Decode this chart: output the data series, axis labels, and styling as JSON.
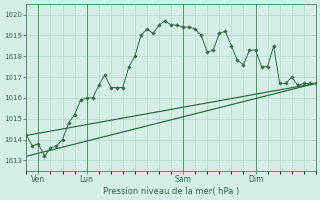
{
  "title": "Pression niveau de la mer( hPa )",
  "ylim": [
    1012.5,
    1020.5
  ],
  "xlim": [
    0,
    96
  ],
  "bg_color": "#d6eee8",
  "line_color": "#2d6e3e",
  "grid_color": "#b0d4c8",
  "tick_color": "#2d6e3e",
  "day_labels": [
    "Ven",
    "Lun",
    "Sam",
    "Dim"
  ],
  "day_positions": [
    4,
    20,
    52,
    76
  ],
  "yticks": [
    1013,
    1014,
    1015,
    1016,
    1017,
    1018,
    1019,
    1020
  ],
  "series1_x": [
    0,
    2,
    4,
    6,
    8,
    10,
    12,
    14,
    16,
    18,
    20,
    22,
    24,
    26,
    28,
    30,
    32,
    34,
    36,
    38,
    40,
    42,
    44,
    46,
    48,
    50,
    52,
    54,
    56,
    58,
    60,
    62,
    64,
    66,
    68,
    70,
    72,
    74,
    76,
    78,
    80,
    82,
    84,
    86,
    88,
    90,
    92,
    94,
    96
  ],
  "series1_y": [
    1014.2,
    1013.7,
    1013.8,
    1013.2,
    1013.6,
    1013.7,
    1014.0,
    1014.8,
    1015.2,
    1015.9,
    1016.0,
    1016.0,
    1016.6,
    1017.1,
    1016.5,
    1016.5,
    1016.5,
    1017.5,
    1018.0,
    1019.0,
    1019.3,
    1019.1,
    1019.5,
    1019.7,
    1019.5,
    1019.5,
    1019.4,
    1019.4,
    1019.3,
    1019.0,
    1018.2,
    1018.3,
    1019.1,
    1019.2,
    1018.5,
    1017.8,
    1017.6,
    1018.3,
    1018.3,
    1017.5,
    1017.5,
    1018.5,
    1016.7,
    1016.7,
    1017.0,
    1016.6,
    1016.7,
    1016.7,
    1016.7
  ],
  "series2_x": [
    0,
    96
  ],
  "series2_y": [
    1013.2,
    1016.7
  ],
  "series3_x": [
    0,
    96
  ],
  "series3_y": [
    1013.2,
    1016.7
  ],
  "series4_x": [
    0,
    96
  ],
  "series4_y": [
    1014.2,
    1016.7
  ]
}
